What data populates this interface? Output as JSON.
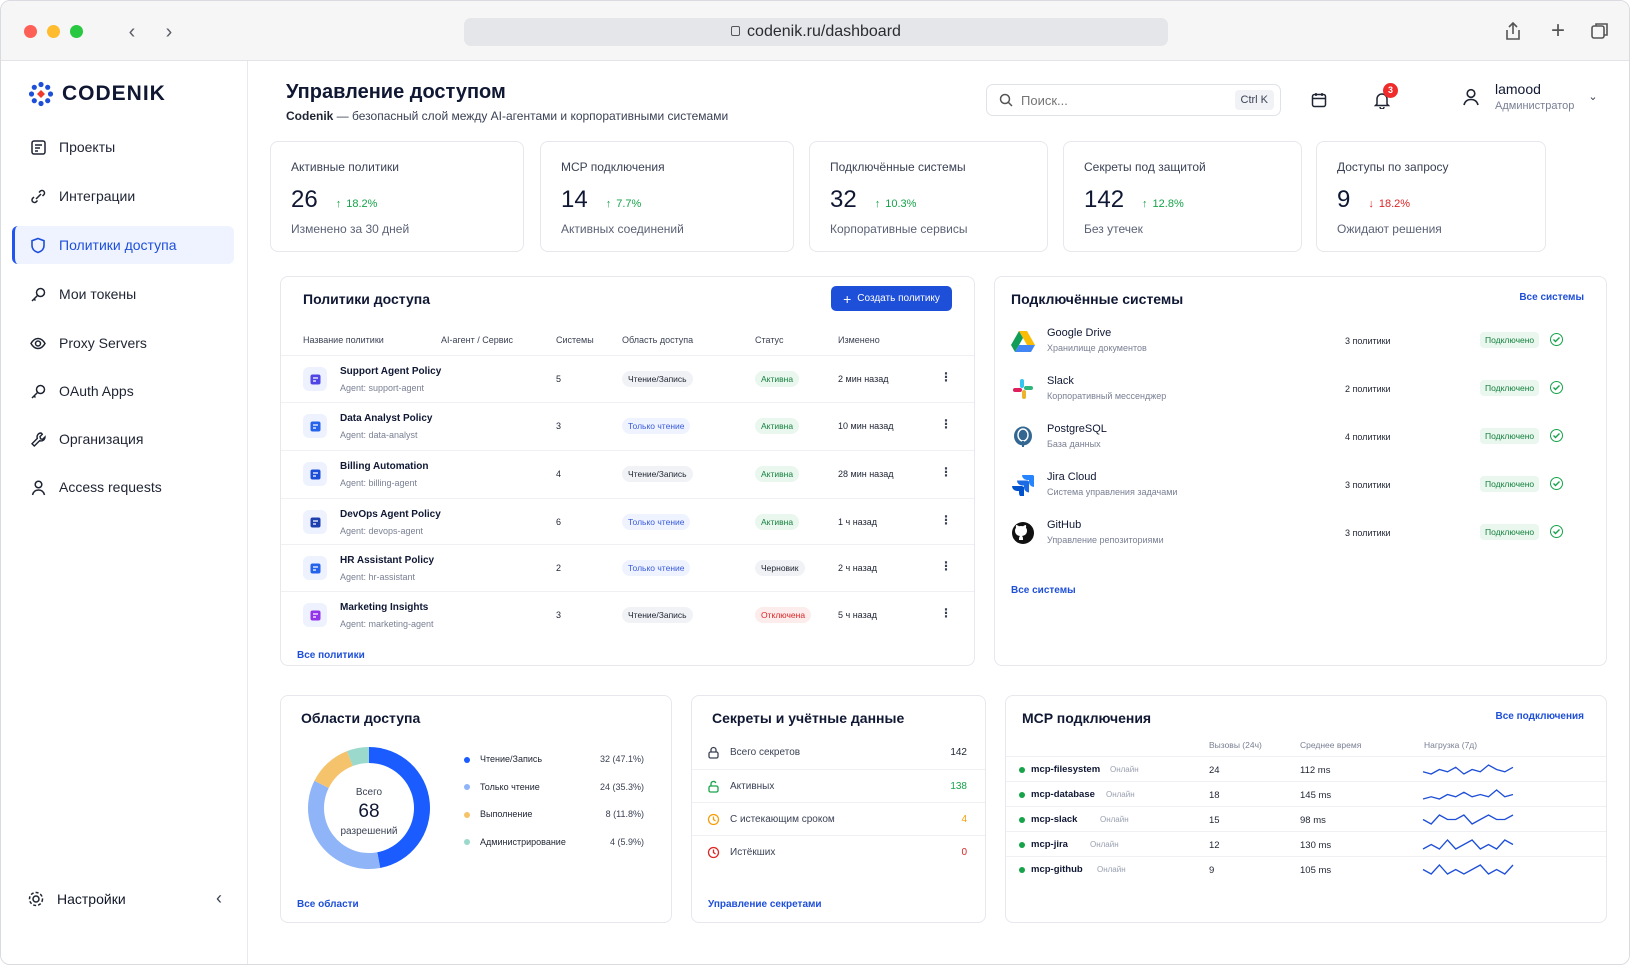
{
  "browser": {
    "url": "codenik.ru/dashboard"
  },
  "app": {
    "logo": "CODENIK"
  },
  "sidebar": {
    "items": [
      {
        "label": "Проекты",
        "icon": "projects-icon"
      },
      {
        "label": "Интеграции",
        "icon": "integrations-icon"
      },
      {
        "label": "Политики доступа",
        "icon": "shield-icon",
        "active": true
      },
      {
        "label": "Мои токены",
        "icon": "key-icon"
      },
      {
        "label": "Proxy Servers",
        "icon": "proxy-icon"
      },
      {
        "label": "OAuth Apps",
        "icon": "key-icon"
      },
      {
        "label": "Организация",
        "icon": "wrench-icon"
      },
      {
        "label": "Access requests",
        "icon": "user-icon"
      }
    ],
    "settings": "Настройки"
  },
  "header": {
    "title": "Управление доступом",
    "subtitle_brand": "Codenik",
    "subtitle_rest": " — безопасный слой между AI-агентами и корпоративными системами",
    "search_placeholder": "Поиск...",
    "search_shortcut": "Ctrl K",
    "notifications_count": "3",
    "user_name": "lamood",
    "user_role": "Администратор"
  },
  "kpis": [
    {
      "label": "Активные политики",
      "value": "26",
      "delta": "18.2%",
      "dir": "up",
      "foot": "Изменено за 30 дней"
    },
    {
      "label": "MCP подключения",
      "value": "14",
      "delta": "7.7%",
      "dir": "up",
      "foot": "Активных соединений"
    },
    {
      "label": "Подключённые системы",
      "value": "32",
      "delta": "10.3%",
      "dir": "up",
      "foot": "Корпоративные сервисы"
    },
    {
      "label": "Секреты под защитой",
      "value": "142",
      "delta": "12.8%",
      "dir": "up",
      "foot": "Без утечек"
    },
    {
      "label": "Доступы по запросу",
      "value": "9",
      "delta": "18.2%",
      "dir": "down",
      "foot": "Ожидают решения"
    }
  ],
  "policies": {
    "title": "Политики доступа",
    "create_label": "Создать политику",
    "columns": [
      "Название политики",
      "AI-агент / Сервис",
      "Системы",
      "Область доступа",
      "Статус",
      "Изменено"
    ],
    "rows": [
      {
        "name": "Support Agent Policy",
        "agent": "Agent: support-agent",
        "systems": "5",
        "scope": "Чтение/Запись",
        "scope_type": "rw",
        "status": "Активна",
        "status_type": "active",
        "changed": "2 мин назад",
        "icon_color": "#4f46e5"
      },
      {
        "name": "Data Analyst Policy",
        "agent": "Agent: data-analyst",
        "systems": "3",
        "scope": "Только чтение",
        "scope_type": "ro",
        "status": "Активна",
        "status_type": "active",
        "changed": "10 мин назад",
        "icon_color": "#2563eb"
      },
      {
        "name": "Billing Automation",
        "agent": "Agent: billing-agent",
        "systems": "4",
        "scope": "Чтение/Запись",
        "scope_type": "rw",
        "status": "Активна",
        "status_type": "active",
        "changed": "28 мин назад",
        "icon_color": "#1d4ed8"
      },
      {
        "name": "DevOps Agent Policy",
        "agent": "Agent: devops-agent",
        "systems": "6",
        "scope": "Только чтение",
        "scope_type": "ro",
        "status": "Активна",
        "status_type": "active",
        "changed": "1 ч назад",
        "icon_color": "#1e40af"
      },
      {
        "name": "HR Assistant Policy",
        "agent": "Agent: hr-assistant",
        "systems": "2",
        "scope": "Только чтение",
        "scope_type": "ro",
        "status": "Черновик",
        "status_type": "draft",
        "changed": "2 ч назад",
        "icon_color": "#2563eb"
      },
      {
        "name": "Marketing Insights",
        "agent": "Agent: marketing-agent",
        "systems": "3",
        "scope": "Чтение/Запись",
        "scope_type": "rw",
        "status": "Отключена",
        "status_type": "off",
        "changed": "5 ч назад",
        "icon_color": "#9333ea"
      }
    ],
    "all_link": "Все политики"
  },
  "systems": {
    "title": "Подключённые системы",
    "top_link": "Все системы",
    "rows": [
      {
        "name": "Google Drive",
        "desc": "Хранилище документов",
        "policies": "3 политики",
        "status": "Подключено",
        "icon": "google-drive-icon"
      },
      {
        "name": "Slack",
        "desc": "Корпоративный мессенджер",
        "policies": "2 политики",
        "status": "Подключено",
        "icon": "slack-icon"
      },
      {
        "name": "PostgreSQL",
        "desc": "База данных",
        "policies": "4 политики",
        "status": "Подключено",
        "icon": "postgresql-icon"
      },
      {
        "name": "Jira Cloud",
        "desc": "Система управления задачами",
        "policies": "3 политики",
        "status": "Подключено",
        "icon": "jira-icon"
      },
      {
        "name": "GitHub",
        "desc": "Управление репозиториями",
        "policies": "3 политики",
        "status": "Подключено",
        "icon": "github-icon"
      }
    ],
    "bottom_link": "Все системы"
  },
  "scopes": {
    "title": "Области доступа",
    "center_top": "Всего",
    "center_value": "68",
    "center_bottom": "разрешений",
    "all_link": "Все области",
    "chart_data": {
      "type": "pie",
      "categories": [
        "Чтение/Запись",
        "Только чтение",
        "Выполнение",
        "Администрирование"
      ],
      "values": [
        32,
        24,
        8,
        4
      ],
      "labels": [
        "32 (47.1%)",
        "24 (35.3%)",
        "8 (11.8%)",
        "4 (5.9%)"
      ],
      "colors": [
        "#1a5cff",
        "#8fb4f7",
        "#f5c36b",
        "#9bd9cc"
      ]
    }
  },
  "secrets": {
    "title": "Секреты и учётные данные",
    "rows": [
      {
        "label": "Всего секретов",
        "value": "142",
        "color": "#1f2433",
        "icon": "lock-icon"
      },
      {
        "label": "Активных",
        "value": "138",
        "color": "#16a34a",
        "icon": "unlock-icon"
      },
      {
        "label": "С истекающим сроком",
        "value": "4",
        "color": "#f59e0b",
        "icon": "clock-icon"
      },
      {
        "label": "Истёкших",
        "value": "0",
        "color": "#dc2626",
        "icon": "expired-icon"
      }
    ],
    "manage_link": "Управление секретами"
  },
  "mcp": {
    "title": "MCP подключения",
    "top_link": "Все подключения",
    "columns": [
      "Вызовы (24ч)",
      "Среднее время",
      "Нагрузка (7д)"
    ],
    "rows": [
      {
        "name": "mcp-filesystem",
        "status": "Онлайн",
        "calls": "24",
        "time": "112 ms",
        "load": [
          5,
          4,
          6,
          5,
          7,
          4,
          6,
          5,
          8,
          6,
          5,
          7
        ]
      },
      {
        "name": "mcp-database",
        "status": "Онлайн",
        "calls": "18",
        "time": "145 ms",
        "load": [
          3,
          4,
          3,
          5,
          4,
          6,
          4,
          5,
          4,
          7,
          4,
          5
        ]
      },
      {
        "name": "mcp-slack",
        "status": "Онлайн",
        "calls": "15",
        "time": "98 ms",
        "load": [
          4,
          3,
          5,
          4,
          4,
          5,
          3,
          4,
          5,
          4,
          4,
          5
        ]
      },
      {
        "name": "mcp-jira",
        "status": "Онлайн",
        "calls": "12",
        "time": "130 ms",
        "load": [
          4,
          5,
          4,
          6,
          4,
          5,
          6,
          4,
          5,
          4,
          6,
          5
        ]
      },
      {
        "name": "mcp-github",
        "status": "Онлайн",
        "calls": "9",
        "time": "105 ms",
        "load": [
          5,
          4,
          6,
          4,
          5,
          4,
          5,
          6,
          4,
          5,
          4,
          6
        ]
      }
    ]
  }
}
